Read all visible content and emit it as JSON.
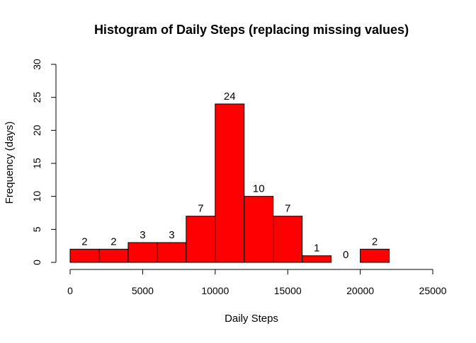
{
  "chart_data": {
    "type": "bar",
    "title": "Histogram of Daily Steps (replacing missing values)",
    "xlabel": "Daily Steps",
    "ylabel": "Frequency (days)",
    "bins": [
      {
        "start": 0,
        "end": 2000,
        "count": 2
      },
      {
        "start": 2000,
        "end": 4000,
        "count": 2
      },
      {
        "start": 4000,
        "end": 6000,
        "count": 3
      },
      {
        "start": 6000,
        "end": 8000,
        "count": 3
      },
      {
        "start": 8000,
        "end": 10000,
        "count": 7
      },
      {
        "start": 10000,
        "end": 12000,
        "count": 24
      },
      {
        "start": 12000,
        "end": 14000,
        "count": 10
      },
      {
        "start": 14000,
        "end": 16000,
        "count": 7
      },
      {
        "start": 16000,
        "end": 18000,
        "count": 1
      },
      {
        "start": 18000,
        "end": 20000,
        "count": 0
      },
      {
        "start": 20000,
        "end": 22000,
        "count": 2
      }
    ],
    "xlim": [
      0,
      25000
    ],
    "ylim": [
      0,
      30
    ],
    "x_ticks": [
      0,
      5000,
      10000,
      15000,
      20000,
      25000
    ],
    "y_ticks": [
      0,
      5,
      10,
      15,
      20,
      25,
      30
    ],
    "bar_color": "#ff0000",
    "border_color": "#000000",
    "grid": false,
    "legend": "none"
  }
}
